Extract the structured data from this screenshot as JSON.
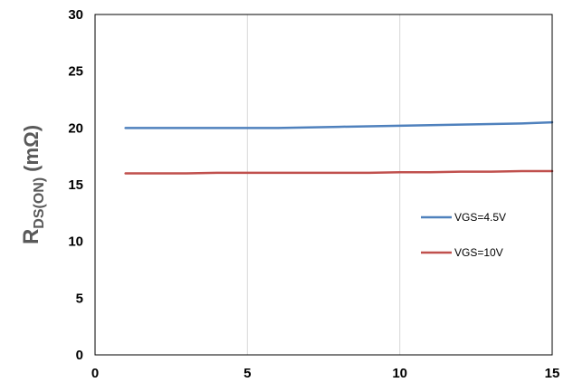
{
  "chart_data": {
    "type": "line",
    "title": "",
    "xlabel": "",
    "ylabel": {
      "main": "R",
      "subscript": "DS(ON)",
      "unit": "(mΩ)"
    },
    "xlim": [
      0,
      15
    ],
    "ylim": [
      0,
      30
    ],
    "x_ticks": [
      0,
      5,
      10,
      15
    ],
    "y_ticks": [
      0,
      5,
      10,
      15,
      20,
      25,
      30
    ],
    "grid": "vertical",
    "legend_position": "right",
    "series": [
      {
        "name": "VGS=4.5V",
        "color": "#4f81bd",
        "x": [
          1,
          2,
          3,
          4,
          5,
          6,
          7,
          8,
          9,
          10,
          11,
          12,
          13,
          14,
          15
        ],
        "y": [
          20.0,
          20.0,
          20.0,
          20.0,
          20.0,
          20.0,
          20.05,
          20.1,
          20.15,
          20.2,
          20.25,
          20.3,
          20.35,
          20.4,
          20.5
        ]
      },
      {
        "name": "VGS=10V",
        "color": "#c0504d",
        "x": [
          1,
          2,
          3,
          4,
          5,
          6,
          7,
          8,
          9,
          10,
          11,
          12,
          13,
          14,
          15
        ],
        "y": [
          16.0,
          16.0,
          16.0,
          16.05,
          16.05,
          16.05,
          16.05,
          16.05,
          16.05,
          16.1,
          16.1,
          16.15,
          16.15,
          16.2,
          16.2
        ]
      }
    ]
  }
}
